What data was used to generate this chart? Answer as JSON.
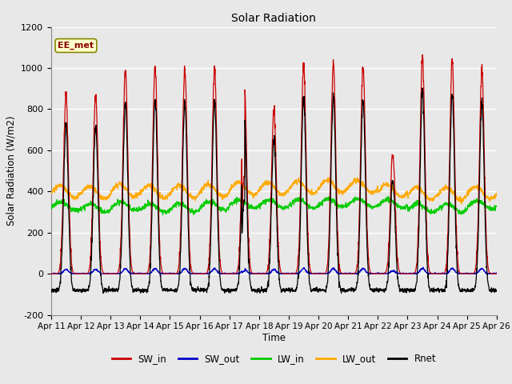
{
  "title": "Solar Radiation",
  "ylabel": "Solar Radiation (W/m2)",
  "xlabel": "Time",
  "ylim": [
    -200,
    1200
  ],
  "ytick_values": [
    -200,
    0,
    200,
    400,
    600,
    800,
    1000,
    1200
  ],
  "xtick_labels": [
    "Apr 11",
    "Apr 12",
    "Apr 13",
    "Apr 14",
    "Apr 15",
    "Apr 16",
    "Apr 17",
    "Apr 18",
    "Apr 19",
    "Apr 20",
    "Apr 21",
    "Apr 22",
    "Apr 23",
    "Apr 24",
    "Apr 25",
    "Apr 26"
  ],
  "colors": {
    "SW_in": "#cc0000",
    "SW_out": "#0000cc",
    "LW_in": "#00cc00",
    "LW_out": "#ffaa00",
    "Rnet": "#000000"
  },
  "legend_label": "EE_met",
  "fig_bg_color": "#e8e8e8",
  "plot_bg_color": "#e8e8e8",
  "peak_heights": [
    870,
    870,
    995,
    1005,
    1000,
    1000,
    950,
    800,
    1010,
    1025,
    1010,
    590,
    1055,
    1030,
    985
  ],
  "n_days": 15,
  "n_per_day": 144,
  "lw_in_base": [
    330,
    320,
    330,
    320,
    320,
    330,
    340,
    340,
    340,
    345,
    345,
    340,
    320,
    320,
    335
  ],
  "lw_out_base": [
    400,
    395,
    405,
    400,
    400,
    405,
    415,
    415,
    420,
    425,
    425,
    405,
    390,
    390,
    395
  ],
  "night_rnet": -80
}
